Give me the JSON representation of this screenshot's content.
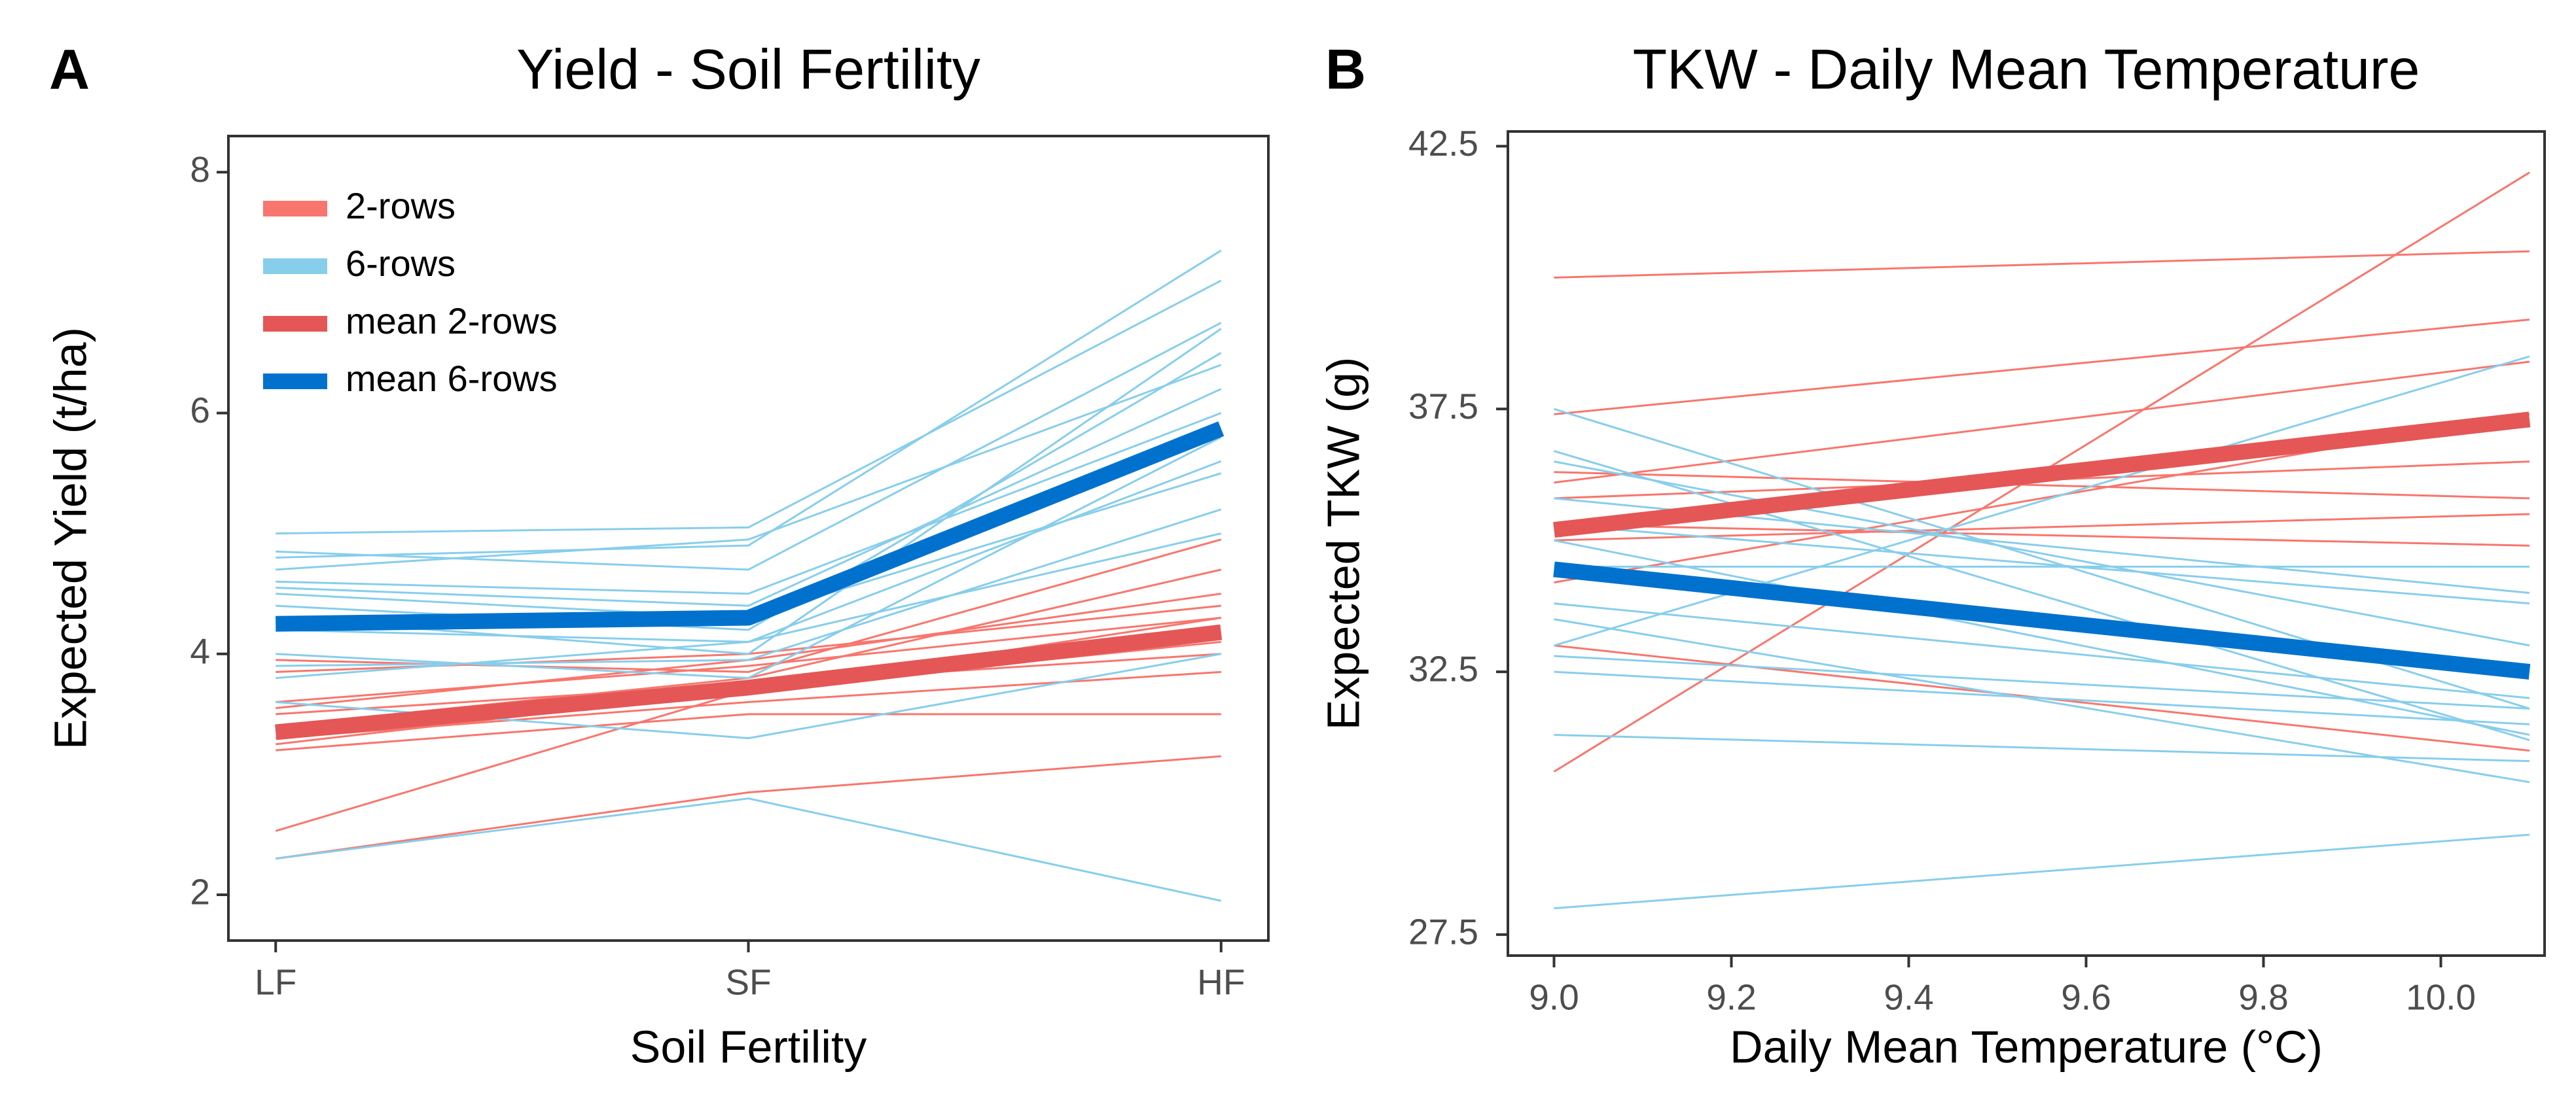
{
  "chart_data": [
    {
      "type": "line",
      "panel_label": "A",
      "title": "Yield - Soil Fertility",
      "x_label": "Soil Fertility",
      "y_label": "Expected Yield (t/ha)",
      "categories": [
        "LF",
        "SF",
        "HF"
      ],
      "ylim": [
        1.62,
        8.3
      ],
      "yticks": [
        2,
        4,
        6,
        8
      ],
      "legend": "top-left",
      "series": [
        {
          "name": "2-rows",
          "color": "#f8766d",
          "emphasis": false,
          "lines": [
            [
              2.3,
              2.85,
              3.15
            ],
            [
              2.53,
              3.7,
              4.3
            ],
            [
              3.2,
              3.5,
              3.5
            ],
            [
              3.3,
              3.6,
              3.85
            ],
            [
              3.5,
              3.75,
              4.0
            ],
            [
              3.6,
              3.9,
              4.3
            ],
            [
              3.85,
              4.0,
              4.4
            ],
            [
              3.95,
              3.85,
              4.95
            ],
            [
              3.25,
              3.7,
              4.1
            ],
            [
              3.4,
              3.8,
              4.7
            ],
            [
              3.55,
              3.95,
              4.5
            ]
          ]
        },
        {
          "name": "6-rows",
          "color": "#87ceeb",
          "emphasis": false,
          "lines": [
            [
              2.3,
              2.8,
              1.95
            ],
            [
              3.6,
              3.3,
              4.0
            ],
            [
              4.0,
              3.8,
              5.8
            ],
            [
              4.2,
              4.1,
              5.0
            ],
            [
              4.5,
              4.3,
              5.5
            ],
            [
              4.6,
              4.5,
              6.0
            ],
            [
              4.8,
              4.9,
              7.35
            ],
            [
              5.0,
              5.05,
              7.1
            ],
            [
              4.85,
              4.7,
              6.75
            ],
            [
              4.4,
              4.2,
              6.5
            ],
            [
              3.9,
              3.95,
              5.2
            ],
            [
              4.55,
              4.4,
              6.2
            ],
            [
              4.3,
              4.0,
              6.7
            ],
            [
              3.8,
              4.1,
              5.6
            ],
            [
              4.7,
              4.95,
              6.4
            ]
          ]
        },
        {
          "name": "mean 2-rows",
          "color": "#e45756",
          "emphasis": true,
          "lines": [
            [
              3.35,
              3.72,
              4.18
            ]
          ]
        },
        {
          "name": "mean 6-rows",
          "color": "#0072ce",
          "emphasis": true,
          "lines": [
            [
              4.25,
              4.3,
              5.87
            ]
          ]
        }
      ]
    },
    {
      "type": "line",
      "panel_label": "B",
      "title": "TKW - Daily Mean Temperature",
      "x_label": "Daily Mean Temperature (°C)",
      "y_label": "Expected TKW (g)",
      "x": [
        9.0,
        10.1
      ],
      "xlim": [
        8.948,
        10.117
      ],
      "xticks": [
        {
          "value": 9,
          "label": "9.0"
        },
        9.2,
        9.4,
        9.6,
        9.8,
        {
          "value": 10,
          "label": "10.0"
        }
      ],
      "ylim": [
        27.1,
        42.78
      ],
      "yticks": [
        27.5,
        32.5,
        37.5,
        42.5
      ],
      "legend": "none",
      "series": [
        {
          "name": "2-rows",
          "color": "#f8766d",
          "emphasis": false,
          "lines": [
            [
              30.6,
              42.0
            ],
            [
              40.0,
              40.5
            ],
            [
              37.4,
              39.2
            ],
            [
              36.1,
              38.4
            ],
            [
              34.2,
              37.4
            ],
            [
              35.0,
              35.5
            ],
            [
              35.3,
              34.9
            ],
            [
              36.3,
              35.8
            ],
            [
              33.0,
              31.0
            ],
            [
              35.8,
              36.5
            ]
          ]
        },
        {
          "name": "6-rows",
          "color": "#87ceeb",
          "emphasis": false,
          "lines": [
            [
              28.0,
              29.4
            ],
            [
              31.3,
              30.8
            ],
            [
              33.0,
              38.5
            ],
            [
              37.5,
              31.8
            ],
            [
              36.7,
              31.2
            ],
            [
              36.5,
              33.0
            ],
            [
              35.8,
              34.0
            ],
            [
              35.0,
              31.3
            ],
            [
              34.5,
              34.5
            ],
            [
              33.8,
              32.0
            ],
            [
              32.5,
              31.5
            ],
            [
              33.5,
              30.4
            ],
            [
              35.3,
              33.8
            ],
            [
              32.8,
              31.8
            ]
          ]
        },
        {
          "name": "mean 2-rows",
          "color": "#e45756",
          "emphasis": true,
          "lines": [
            [
              35.2,
              37.3
            ]
          ]
        },
        {
          "name": "mean 6-rows",
          "color": "#0072ce",
          "emphasis": true,
          "lines": [
            [
              34.45,
              32.5
            ]
          ]
        }
      ]
    }
  ]
}
